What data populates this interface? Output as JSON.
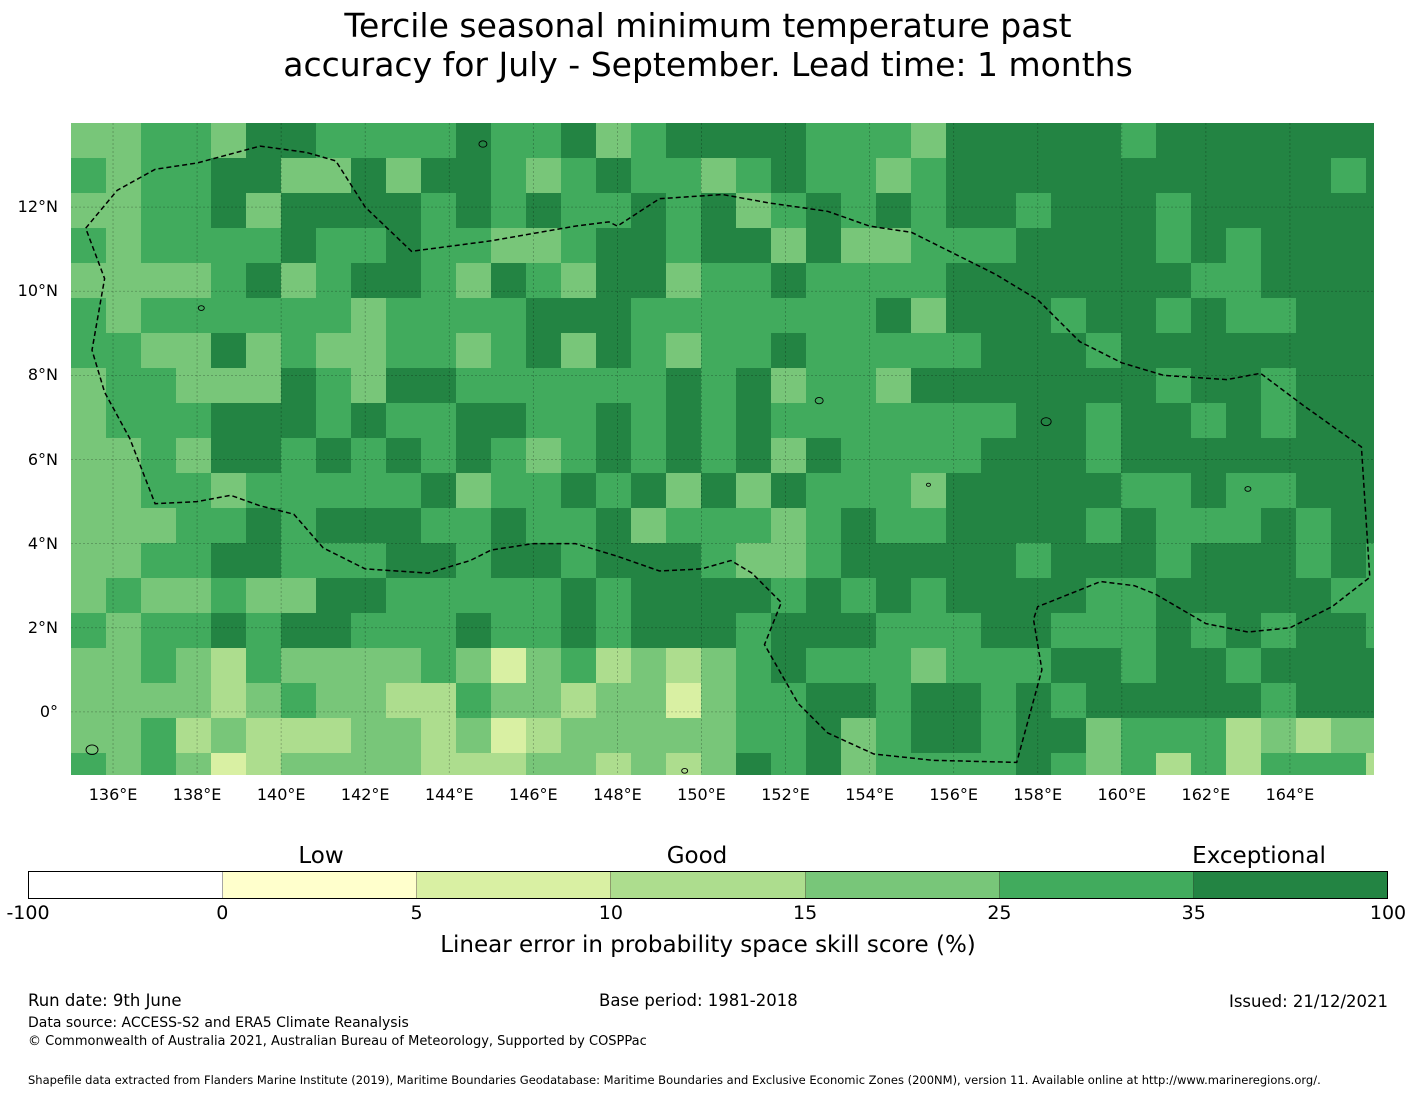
{
  "title": {
    "line1": "Tercile seasonal minimum temperature past",
    "line2": "accuracy for July - September. Lead time: 1 months"
  },
  "map": {
    "lon_range": [
      135,
      166
    ],
    "lat_range": [
      -1.5,
      14
    ],
    "lat_labels": [
      "12°N",
      "10°N",
      "8°N",
      "6°N",
      "4°N",
      "2°N",
      "0°"
    ],
    "lat_values": [
      12,
      10,
      8,
      6,
      4,
      2,
      0
    ],
    "lon_labels": [
      "136°E",
      "138°E",
      "140°E",
      "142°E",
      "144°E",
      "146°E",
      "148°E",
      "150°E",
      "152°E",
      "154°E",
      "156°E",
      "158°E",
      "160°E",
      "162°E",
      "164°E"
    ],
    "lon_values": [
      136,
      138,
      140,
      142,
      144,
      146,
      148,
      150,
      152,
      154,
      156,
      158,
      160,
      162,
      164
    ],
    "eez_boundary": "dashed",
    "grid": true
  },
  "legend": {
    "categories": [
      {
        "label": "Low"
      },
      {
        "label": "Good"
      },
      {
        "label": "Exceptional"
      }
    ],
    "colors": [
      "#ffffff",
      "#ffffcc",
      "#d9f0a3",
      "#addd8e",
      "#78c679",
      "#41ab5d",
      "#238443"
    ],
    "ticks": [
      "-100",
      "0",
      "5",
      "10",
      "15",
      "25",
      "35",
      "100"
    ],
    "title": "Linear error in probability space skill score (%)"
  },
  "footer": {
    "run_date": "Run date: 9th June",
    "base_period": "Base period: 1981-2018",
    "issued": "Issued: 21/12/2021",
    "data_source": "Data source: ACCESS-S2 and ERA5 Climate Reanalysis",
    "copyright": "© Commonwealth of Australia 2021, Australian Bureau of Meteorology, Supported by COSPPac",
    "shapefile": "Shapefile data extracted from Flanders Marine Institute (2019), Maritime Boundaries Geodatabase: Maritime Boundaries and Exclusive Economic Zones (200NM), version 11. Available online at http://www.marineregions.org/."
  }
}
